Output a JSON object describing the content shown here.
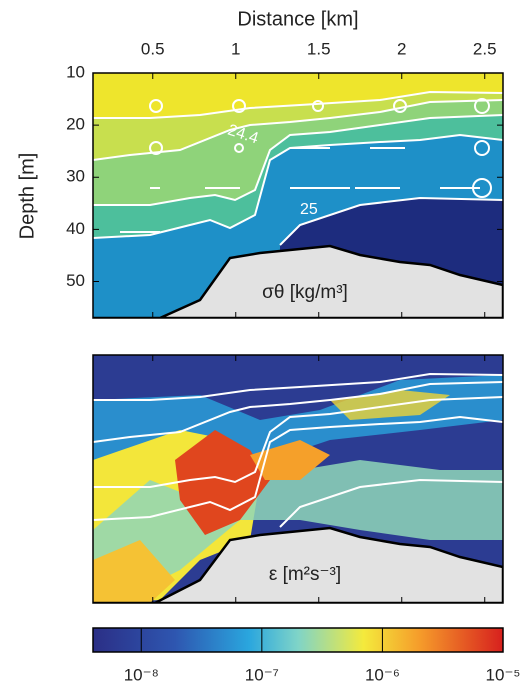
{
  "chart_data": {
    "type": "contour",
    "x_label": "Distance [km]",
    "y_label": "Depth [m]",
    "xlim": [
      0.14,
      2.61
    ],
    "xticks": [
      0.5,
      1,
      1.5,
      2,
      2.5
    ],
    "ylim": [
      10,
      57
    ],
    "yticks": [
      10,
      20,
      30,
      40,
      50
    ],
    "panels": [
      "σθ [kg/m³]",
      "ε [m²s⁻³]"
    ],
    "contour_labels": [
      24.4,
      25
    ],
    "colorbar": {
      "log": true,
      "lim": [
        3.98e-09,
        1e-05
      ],
      "ticks": [
        {
          "value": 1e-08,
          "label": "10⁻⁸"
        },
        {
          "value": 1e-07,
          "label": "10⁻⁷"
        },
        {
          "value": 1e-06,
          "label": "10⁻⁶"
        },
        {
          "value": 1e-05,
          "label": "10⁻⁵"
        }
      ]
    }
  }
}
